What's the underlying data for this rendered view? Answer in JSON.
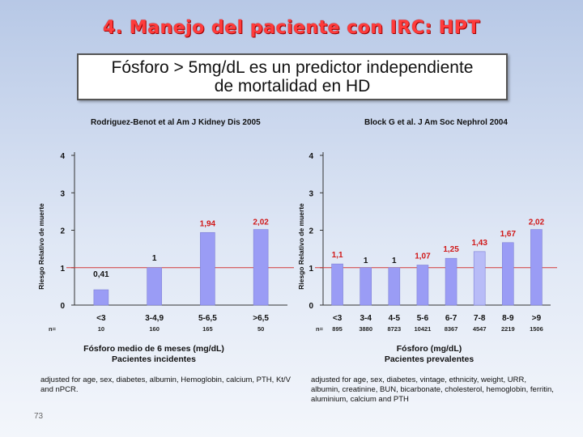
{
  "slide": {
    "title": "4. Manejo del paciente con IRC: HPT",
    "banner_line1": "Fósforo > 5mg/dL es un predictor independiente",
    "banner_line2": "de mortalidad en HD",
    "page_number": "73"
  },
  "left": {
    "study": "Rodriguez-Benot et al Am J Kidney Dis 2005",
    "x_title_line1": "Fósforo medio de 6 meses (mg/dL)",
    "x_title_line2": "Pacientes incidentes",
    "note": "adjusted for age, sex, diabetes, albumin, Hemoglobin, calcium, PTH, Kt/V and nPCR."
  },
  "right": {
    "study": "Block G et al. J Am Soc Nephrol 2004",
    "x_title_line1": "Fósforo   (mg/dL)",
    "x_title_line2": "Pacientes prevalentes",
    "note": "adjusted for age, sex, diabetes, vintage, ethnicity, weight, URR, albumin, creatinine, BUN, bicarbonate, cholesterol, hemoglobin, ferritin, aluminium, calcium and PTH"
  },
  "colors": {
    "bar": "#9a9cf5",
    "bar_light": "#b8bcf7",
    "reference_line": "#d23a3a",
    "label_red": "#d01818",
    "label_black": "#111111"
  },
  "chart_data": [
    {
      "type": "bar",
      "ylabel": "Riesgo Relativo de muerte",
      "ylim": [
        0,
        4
      ],
      "yticks": [
        0,
        1,
        2,
        3,
        4
      ],
      "reference_line": 1,
      "n_label": "n=",
      "categories": [
        "<3",
        "3-4,9",
        "5-6,5",
        ">6,5"
      ],
      "values": [
        0.41,
        1,
        1.94,
        2.02
      ],
      "value_labels": [
        "0,41",
        "1",
        "1,94",
        "2,02"
      ],
      "n": [
        "10",
        "160",
        "165",
        "50"
      ]
    },
    {
      "type": "bar",
      "ylabel": "Riesgo Relativo de muerte",
      "ylim": [
        0,
        4
      ],
      "yticks": [
        0,
        1,
        2,
        3,
        4
      ],
      "reference_line": 1,
      "n_label": "n=",
      "categories": [
        "<3",
        "3-4",
        "4-5",
        "5-6",
        "6-7",
        "7-8",
        "8-9",
        ">9"
      ],
      "values": [
        1.1,
        1,
        1,
        1.07,
        1.25,
        1.43,
        1.67,
        2.02
      ],
      "value_labels": [
        "1,1",
        "1",
        "1",
        "1,07",
        "1,25",
        "1,43",
        "1,67",
        "2,02"
      ],
      "n": [
        "895",
        "3880",
        "8723",
        "10421",
        "8367",
        "4547",
        "2219",
        "1506"
      ]
    }
  ]
}
